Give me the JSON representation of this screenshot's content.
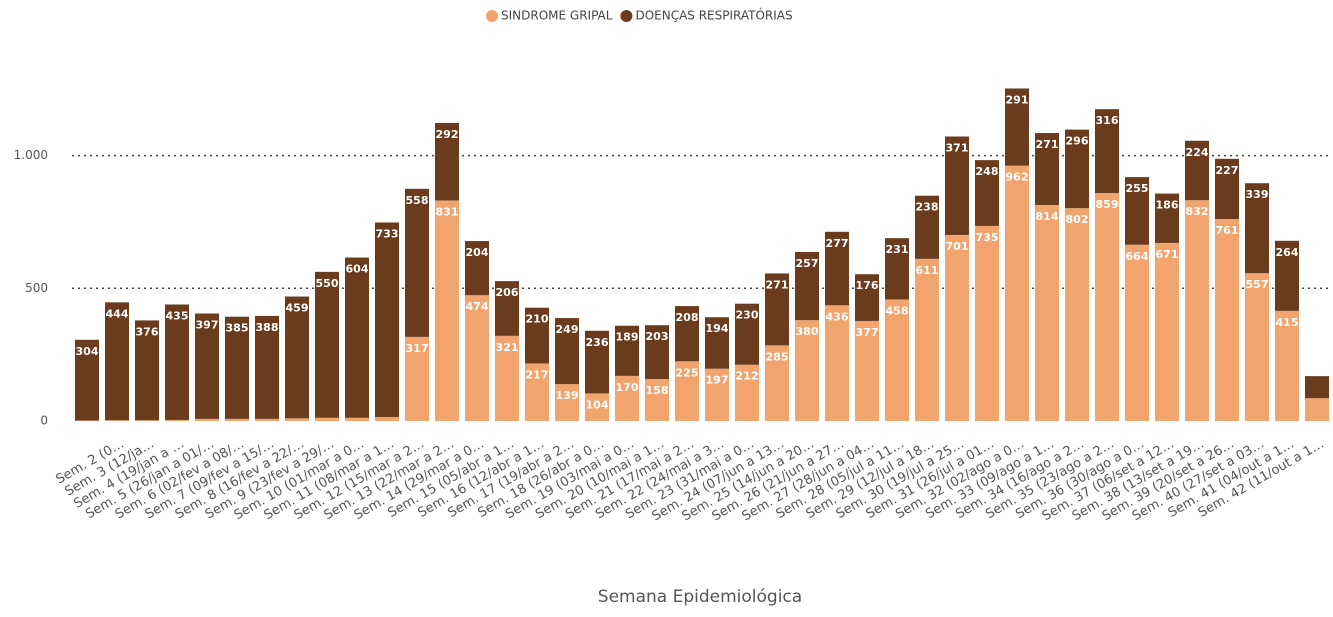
{
  "chart_data": {
    "type": "stacked_bar",
    "x_label": "Semana Epidemiológica",
    "categories": [
      null,
      "Sem. 2 (0…",
      "Sem. 3 (12/ja…",
      "Sem. 4 (19/jan a …",
      "Sem. 5 (26/jan a 01/…",
      "Sem. 6 (02/fev a 08/…",
      "Sem. 7 (09/fev a 15/…",
      "Sem. 8 (16/fev a 22/…",
      "Sem. 9 (23/fev a 29/…",
      "Sem. 10 (01/mar a 0…",
      "Sem. 11 (08/mar a 1…",
      "Sem. 12 (15/mar a 2…",
      "Sem. 13 (22/mar a 2…",
      "Sem. 14 (29/mar a 0…",
      "Sem. 15 (05/abr a 1…",
      "Sem. 16 (12/abr a 1…",
      "Sem. 17 (19/abr a 2…",
      "Sem. 18 (26/abr a 0…",
      "Sem. 19 (03/mai a 0…",
      "Sem. 20 (10/mai a 1…",
      "Sem. 21 (17/mai a 2…",
      "Sem. 22 (24/mai a 3…",
      "Sem. 23 (31/mai a 0…",
      "Sem. 24 (07/jun a 13…",
      "Sem. 25 (14/jun a 20…",
      "Sem. 26 (21/jun a 27…",
      "Sem. 27 (28/jun a 04…",
      "Sem. 28 (05/jul a 11…",
      "Sem. 29 (12/jul a 18…",
      "Sem. 30 (19/jul a 25…",
      "Sem. 31 (26/jul a 01…",
      "Sem. 32 (02/ago a 0…",
      "Sem. 33 (09/ago a 1…",
      "Sem. 34 (16/ago a 2…",
      "Sem. 35 (23/ago a 2…",
      "Sem. 36 (30/ago a 0…",
      "Sem. 37 (06/set a 12…",
      "Sem. 38 (13/set a 19…",
      "Sem. 39 (20/set a 26…",
      "Sem. 40 (27/set a 03…",
      "Sem. 41 (04/out a 1…",
      "Sem. 42 (11/out a 1…"
    ],
    "series": [
      {
        "name": "SINDROME GRIPAL",
        "color": "#f2a46f",
        "values": [
          2,
          3,
          3,
          4,
          8,
          8,
          8,
          10,
          12,
          12,
          15,
          317,
          831,
          474,
          321,
          217,
          139,
          104,
          170,
          158,
          225,
          197,
          212,
          285,
          380,
          436,
          377,
          458,
          611,
          701,
          735,
          962,
          814,
          802,
          859,
          664,
          671,
          832,
          761,
          557,
          415,
          86
        ]
      },
      {
        "name": "DOENÇAS RESPIRATÓRIAS",
        "color": "#6b3b1e",
        "values": [
          304,
          444,
          376,
          435,
          397,
          385,
          388,
          459,
          550,
          604,
          733,
          558,
          292,
          204,
          206,
          210,
          249,
          236,
          189,
          203,
          208,
          194,
          230,
          271,
          257,
          277,
          176,
          231,
          238,
          371,
          248,
          291,
          271,
          296,
          316,
          255,
          186,
          224,
          227,
          339,
          264,
          83
        ]
      }
    ],
    "ylim": [
      0,
      1300
    ],
    "yticks": [
      0,
      500,
      {
        "value": 1000,
        "label": "1.000"
      }
    ],
    "grid": true,
    "legend": "top"
  }
}
